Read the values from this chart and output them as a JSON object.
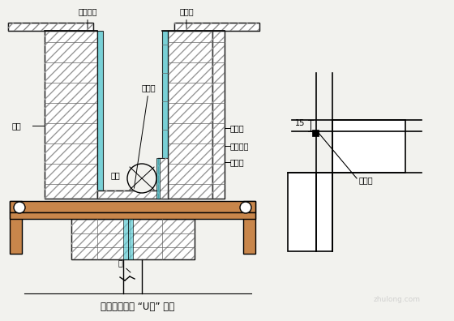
{
  "bg_color": "#f2f2ee",
  "line_color": "#000000",
  "cyan_color": "#5bc8d0",
  "brown_color": "#c8864b",
  "title": "梁、柱接头处 “U形” 模板",
  "label_loubandimo": "楼板底模",
  "label_liangcemo": "梁侧模",
  "label_liangdimo": "梁底模",
  "label_mufang_left": "木方",
  "label_liangbeifang": "梁背方",
  "label_mufang_inner": "木方",
  "label_gangguanbeijeng": "钉管背樓",
  "label_zhumban": "柱模板",
  "label_zhu": "柱",
  "label_mifengitao": "密封条"
}
